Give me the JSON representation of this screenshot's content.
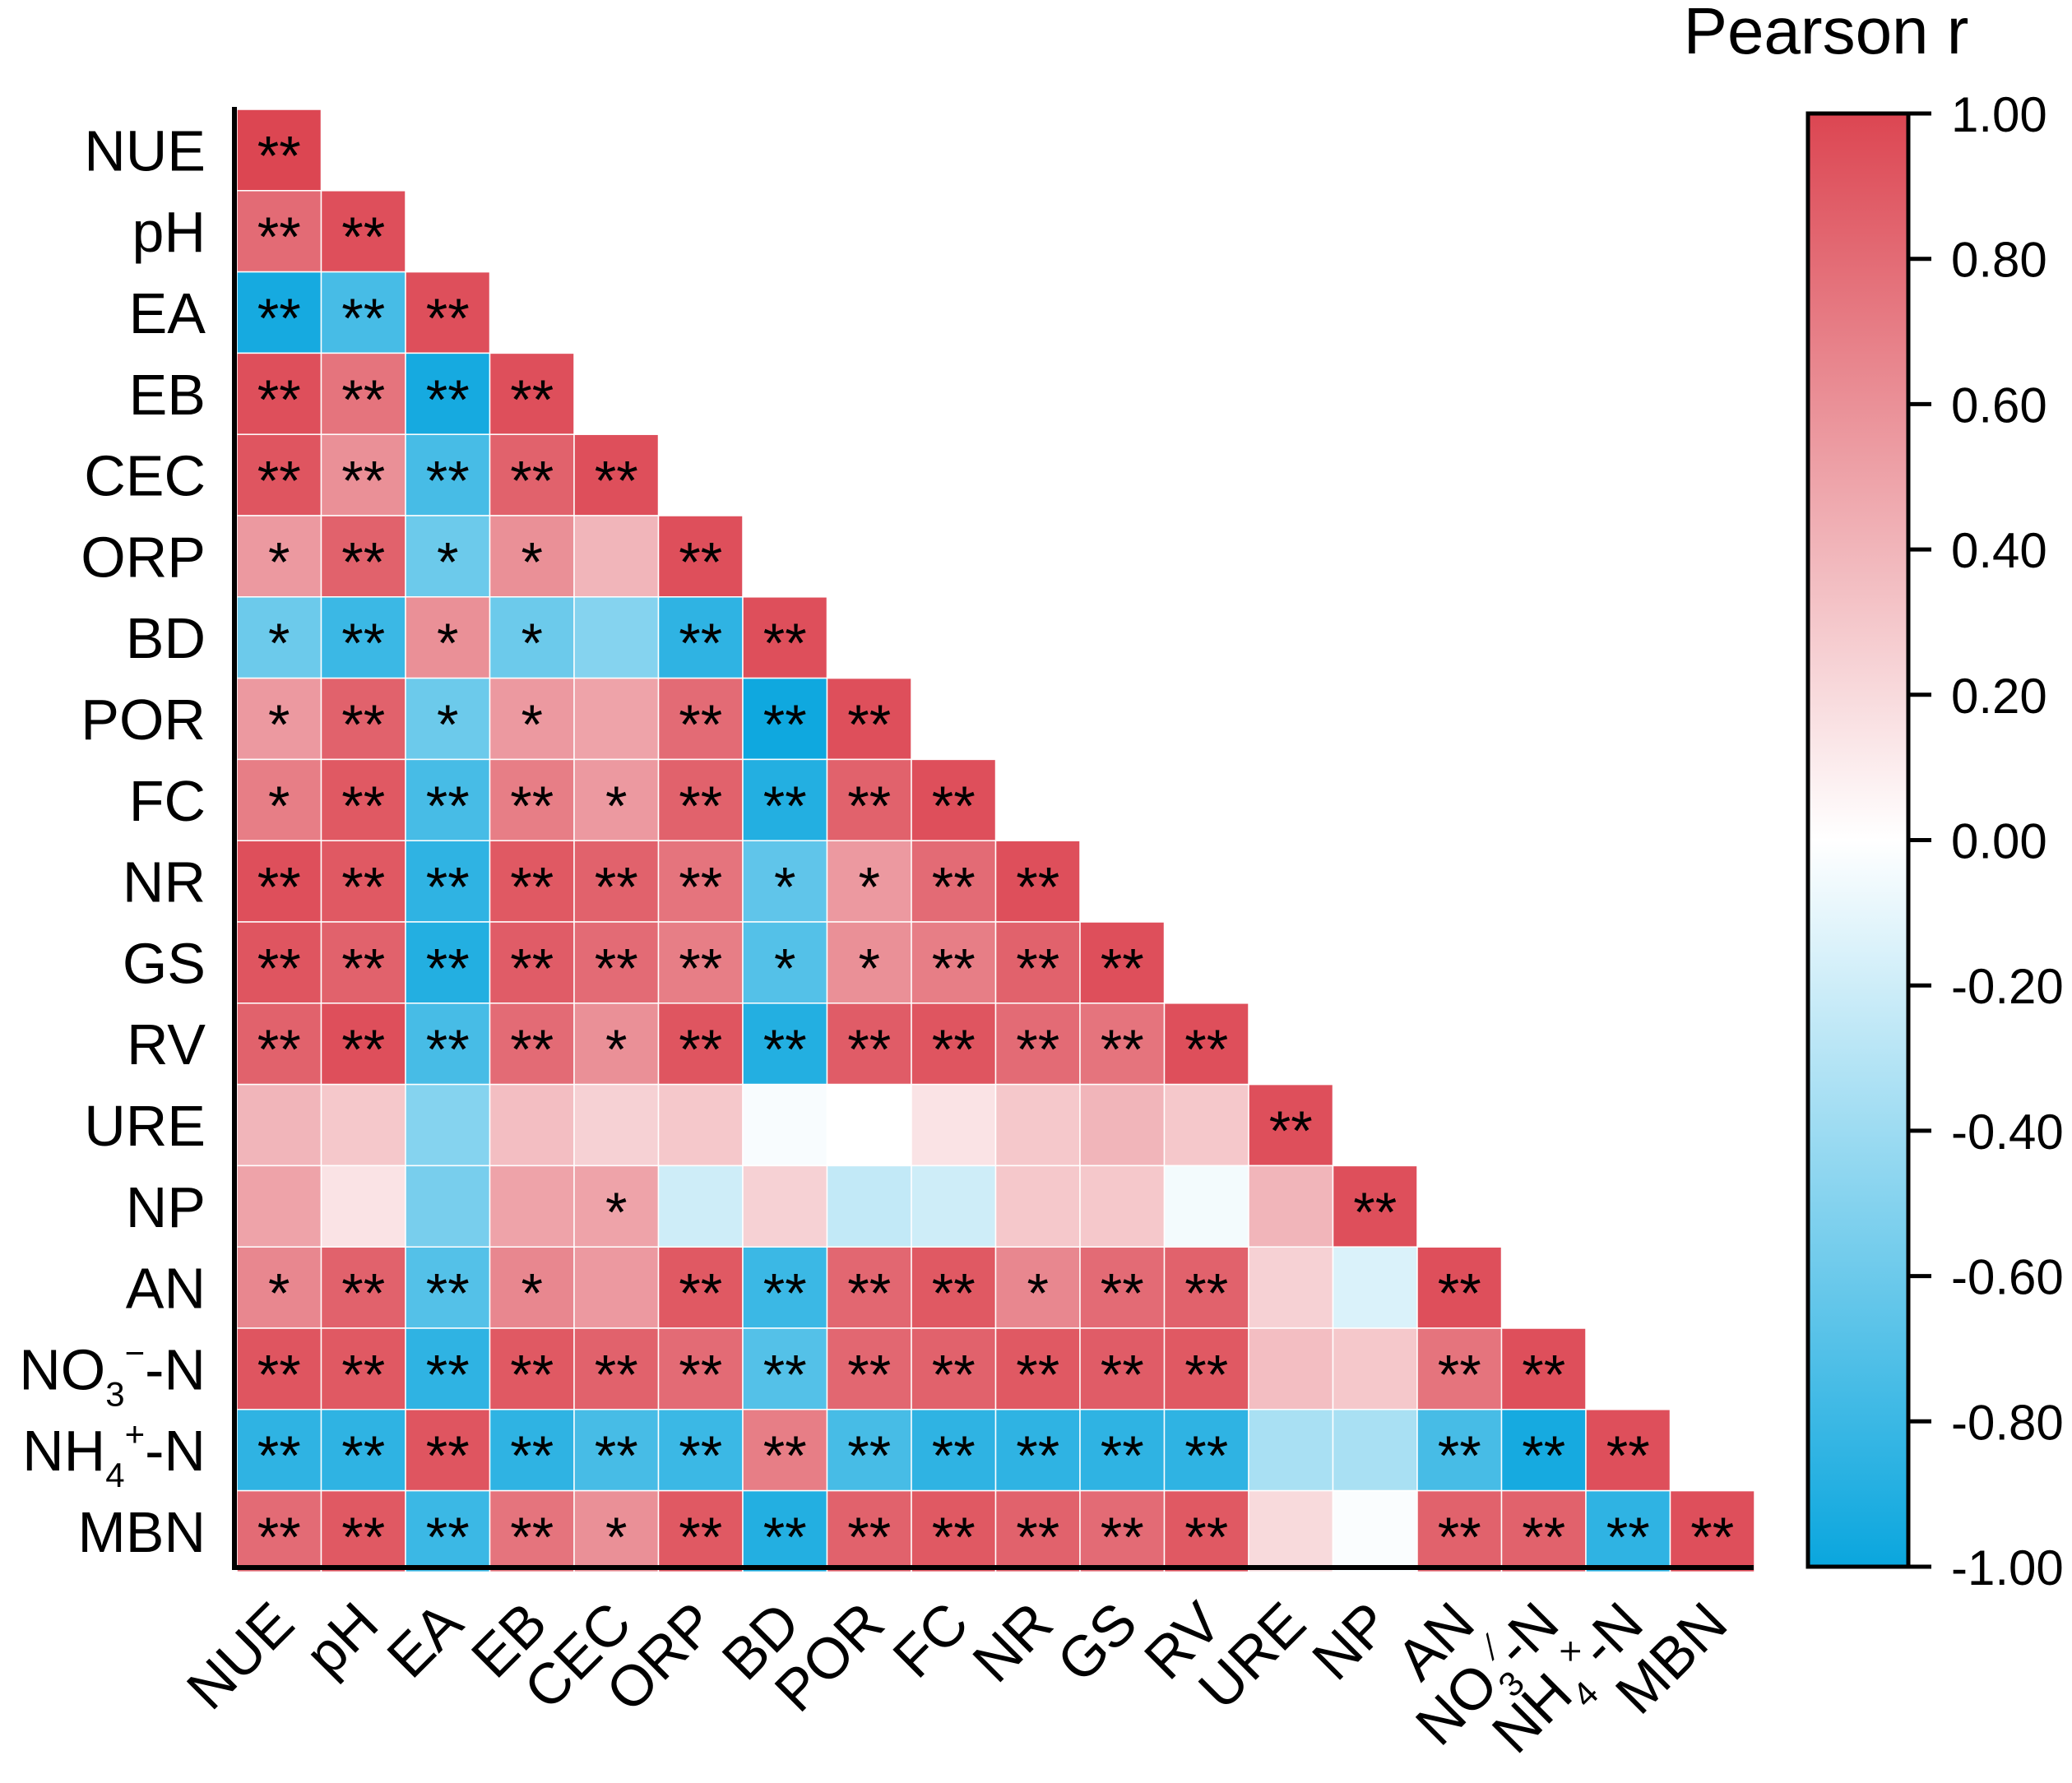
{
  "chart_data": {
    "type": "heatmap",
    "subtype": "lower-triangular correlation matrix",
    "legend_title": "Pearson r",
    "scale": {
      "min": -1.0,
      "max": 1.0,
      "low_color": "#0aa6de",
      "mid_color": "#ffffff",
      "high_color": "#dc4652"
    },
    "scale_ticks": [
      "1.00",
      "0.80",
      "0.60",
      "0.40",
      "0.20",
      "0.00",
      "-0.20",
      "-0.40",
      "-0.60",
      "-0.80",
      "-1.00"
    ],
    "variables": [
      {
        "label": "NUE"
      },
      {
        "label": "pH"
      },
      {
        "label": "EA"
      },
      {
        "label": "EB"
      },
      {
        "label": "CEC"
      },
      {
        "label": "ORP"
      },
      {
        "label": "BD"
      },
      {
        "label": "POR"
      },
      {
        "label": "FC"
      },
      {
        "label": "NR"
      },
      {
        "label": "GS"
      },
      {
        "label": "RV"
      },
      {
        "label": "URE"
      },
      {
        "label": "NP"
      },
      {
        "label": "AN"
      },
      {
        "label": "NO3⁻-N",
        "base": "NO",
        "sub": "3",
        "sup": "−",
        "tail": "-N",
        "axis_sup": "⁄"
      },
      {
        "label": "NH4⁺-N",
        "base": "NH",
        "sub": "4",
        "sup": "+",
        "tail": "-N",
        "axis_sup": "×"
      },
      {
        "label": "MBN"
      }
    ],
    "values": [
      [
        1.0
      ],
      [
        0.8,
        0.95
      ],
      [
        -0.95,
        -0.75,
        0.95
      ],
      [
        0.95,
        0.75,
        -0.95,
        0.95
      ],
      [
        0.92,
        0.6,
        -0.75,
        0.85,
        0.95
      ],
      [
        0.55,
        0.85,
        -0.6,
        0.6,
        0.4,
        0.95
      ],
      [
        -0.6,
        -0.8,
        0.6,
        -0.6,
        -0.5,
        -0.85,
        0.95
      ],
      [
        0.55,
        0.85,
        -0.6,
        0.55,
        0.5,
        0.8,
        -0.98,
        0.95
      ],
      [
        0.7,
        0.9,
        -0.75,
        0.7,
        0.55,
        0.85,
        -0.9,
        0.85,
        0.95
      ],
      [
        0.95,
        0.9,
        -0.85,
        0.9,
        0.85,
        0.75,
        -0.65,
        0.55,
        0.8,
        0.95
      ],
      [
        0.92,
        0.85,
        -0.9,
        0.88,
        0.8,
        0.7,
        -0.7,
        0.6,
        0.7,
        0.85,
        0.95
      ],
      [
        0.85,
        0.95,
        -0.75,
        0.8,
        0.6,
        0.92,
        -0.9,
        0.88,
        0.92,
        0.8,
        0.75,
        0.95
      ],
      [
        0.4,
        0.3,
        -0.5,
        0.35,
        0.25,
        0.3,
        -0.03,
        0.0,
        0.15,
        0.3,
        0.4,
        0.3,
        0.95
      ],
      [
        0.5,
        0.15,
        -0.55,
        0.5,
        0.5,
        -0.2,
        0.25,
        -0.25,
        -0.2,
        0.3,
        0.3,
        -0.05,
        0.4,
        0.95
      ],
      [
        0.65,
        0.85,
        -0.7,
        0.65,
        0.55,
        0.9,
        -0.8,
        0.82,
        0.9,
        0.65,
        0.8,
        0.85,
        0.25,
        -0.15,
        0.95
      ],
      [
        0.92,
        0.9,
        -0.85,
        0.9,
        0.85,
        0.8,
        -0.7,
        0.82,
        0.85,
        0.9,
        0.88,
        0.9,
        0.35,
        0.3,
        0.75,
        0.95
      ],
      [
        -0.85,
        -0.85,
        0.92,
        -0.85,
        -0.75,
        -0.8,
        0.7,
        -0.75,
        -0.85,
        -0.85,
        -0.85,
        -0.85,
        -0.35,
        -0.35,
        -0.75,
        -0.95,
        0.95
      ],
      [
        0.8,
        0.9,
        -0.8,
        0.75,
        0.6,
        0.9,
        -0.9,
        0.85,
        0.9,
        0.85,
        0.8,
        0.9,
        0.2,
        -0.02,
        0.85,
        0.85,
        -0.85,
        0.95
      ]
    ],
    "significance": [
      [
        "**"
      ],
      [
        "**",
        "**"
      ],
      [
        "**",
        "**",
        "**"
      ],
      [
        "**",
        "**",
        "**",
        "**"
      ],
      [
        "**",
        "**",
        "**",
        "**",
        "**"
      ],
      [
        "*",
        "**",
        "*",
        "*",
        "",
        "**"
      ],
      [
        "*",
        "**",
        "*",
        "*",
        "",
        "**",
        "**"
      ],
      [
        "*",
        "**",
        "*",
        "*",
        "",
        "**",
        "**",
        "**"
      ],
      [
        "*",
        "**",
        "**",
        "**",
        "*",
        "**",
        "**",
        "**",
        "**"
      ],
      [
        "**",
        "**",
        "**",
        "**",
        "**",
        "**",
        "*",
        "*",
        "**",
        "**"
      ],
      [
        "**",
        "**",
        "**",
        "**",
        "**",
        "**",
        "*",
        "*",
        "**",
        "**",
        "**"
      ],
      [
        "**",
        "**",
        "**",
        "**",
        "*",
        "**",
        "**",
        "**",
        "**",
        "**",
        "**",
        "**"
      ],
      [
        "",
        "",
        "",
        "",
        "",
        "",
        "",
        "",
        "",
        "",
        "",
        "",
        "**"
      ],
      [
        "",
        "",
        "",
        "",
        "*",
        "",
        "",
        "",
        "",
        "",
        "",
        "",
        "",
        "**"
      ],
      [
        "*",
        "**",
        "**",
        "*",
        "",
        "**",
        "**",
        "**",
        "**",
        "*",
        "**",
        "**",
        "",
        "",
        "**"
      ],
      [
        "**",
        "**",
        "**",
        "**",
        "**",
        "**",
        "**",
        "**",
        "**",
        "**",
        "**",
        "**",
        "",
        "",
        "**",
        "**"
      ],
      [
        "**",
        "**",
        "**",
        "**",
        "**",
        "**",
        "**",
        "**",
        "**",
        "**",
        "**",
        "**",
        "",
        "",
        "**",
        "**",
        "**"
      ],
      [
        "**",
        "**",
        "**",
        "**",
        "*",
        "**",
        "**",
        "**",
        "**",
        "**",
        "**",
        "**",
        "",
        "",
        "**",
        "**",
        "**",
        "**"
      ]
    ]
  }
}
